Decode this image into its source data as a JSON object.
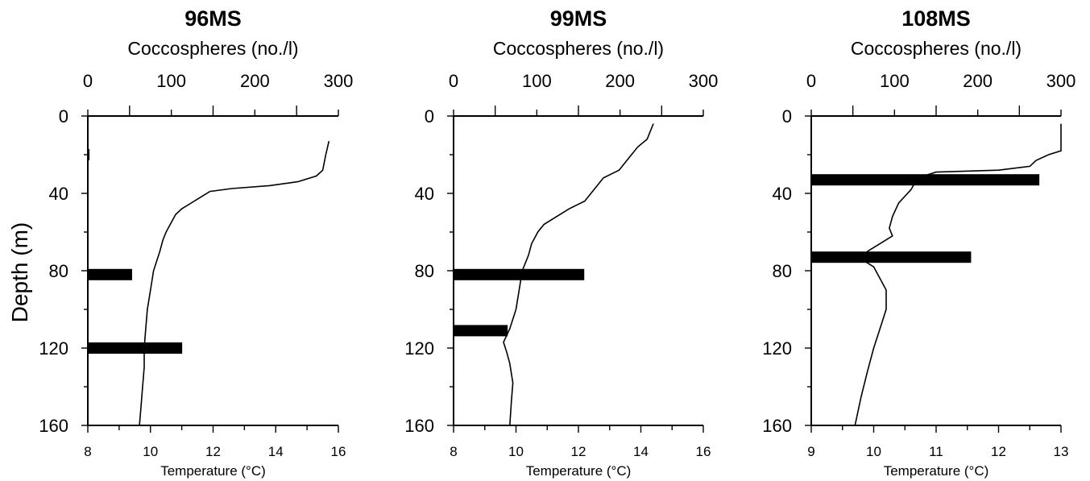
{
  "ylabel": "Depth (m)",
  "chart_data": [
    {
      "type": "bar",
      "title": "96MS",
      "top_axis_label": "Coccospheres (no./l)",
      "bottom_axis_label": "Temperature (°C)",
      "ylim": [
        0,
        160
      ],
      "yticks": [
        0,
        40,
        80,
        120,
        160
      ],
      "xlim_top": [
        0,
        300
      ],
      "xticks_top": [
        0,
        100,
        200,
        300
      ],
      "xlim_bottom": [
        8,
        16
      ],
      "xticks_bottom": [
        8,
        10,
        12,
        14,
        16
      ],
      "bars": [
        {
          "depth": 20,
          "coccospheres": 2
        },
        {
          "depth": 82,
          "coccospheres": 53
        },
        {
          "depth": 120,
          "coccospheres": 113
        }
      ],
      "temperature": [
        [
          15.7,
          13
        ],
        [
          15.6,
          20
        ],
        [
          15.5,
          28
        ],
        [
          15.3,
          31
        ],
        [
          14.7,
          34
        ],
        [
          13.8,
          36
        ],
        [
          12.6,
          37.5
        ],
        [
          11.9,
          39
        ],
        [
          11.6,
          42
        ],
        [
          11.3,
          45
        ],
        [
          11.0,
          48
        ],
        [
          10.8,
          51
        ],
        [
          10.7,
          54
        ],
        [
          10.6,
          57
        ],
        [
          10.5,
          60
        ],
        [
          10.4,
          64
        ],
        [
          10.3,
          70
        ],
        [
          10.1,
          80
        ],
        [
          10.0,
          90
        ],
        [
          9.9,
          100
        ],
        [
          9.85,
          110
        ],
        [
          9.8,
          120
        ],
        [
          9.8,
          130
        ],
        [
          9.75,
          140
        ],
        [
          9.7,
          150
        ],
        [
          9.65,
          160
        ]
      ]
    },
    {
      "type": "bar",
      "title": "99MS",
      "top_axis_label": "Coccospheres (no./l)",
      "bottom_axis_label": "Temperature (°C)",
      "ylim": [
        0,
        160
      ],
      "yticks": [
        0,
        40,
        80,
        120,
        160
      ],
      "xlim_top": [
        0,
        300
      ],
      "xticks_top": [
        0,
        100,
        200,
        300
      ],
      "xlim_bottom": [
        8,
        16
      ],
      "xticks_bottom": [
        8,
        10,
        12,
        14,
        16
      ],
      "bars": [
        {
          "depth": 82,
          "coccospheres": 157
        },
        {
          "depth": 111,
          "coccospheres": 65
        }
      ],
      "temperature": [
        [
          14.4,
          4
        ],
        [
          14.3,
          8
        ],
        [
          14.2,
          12
        ],
        [
          13.9,
          16
        ],
        [
          13.6,
          22
        ],
        [
          13.3,
          28
        ],
        [
          12.8,
          32
        ],
        [
          12.5,
          38
        ],
        [
          12.2,
          44
        ],
        [
          11.7,
          48
        ],
        [
          11.3,
          52
        ],
        [
          10.9,
          56
        ],
        [
          10.7,
          60
        ],
        [
          10.5,
          66
        ],
        [
          10.4,
          72
        ],
        [
          10.2,
          80
        ],
        [
          10.1,
          90
        ],
        [
          10.0,
          100
        ],
        [
          9.8,
          110
        ],
        [
          9.6,
          117
        ],
        [
          9.7,
          122
        ],
        [
          9.8,
          128
        ],
        [
          9.9,
          138
        ],
        [
          9.85,
          148
        ],
        [
          9.8,
          160
        ]
      ]
    },
    {
      "type": "bar",
      "title": "108MS",
      "top_axis_label": "Coccospheres (no./l)",
      "bottom_axis_label": "Temperature (°C)",
      "ylim": [
        0,
        160
      ],
      "yticks": [
        0,
        40,
        80,
        120,
        160
      ],
      "xlim_top": [
        0,
        300
      ],
      "xticks_top": [
        0,
        100,
        200,
        300
      ],
      "xlim_bottom": [
        9,
        13
      ],
      "xticks_bottom": [
        9,
        10,
        11,
        12,
        13
      ],
      "bars": [
        {
          "depth": 33,
          "coccospheres": 274
        },
        {
          "depth": 73,
          "coccospheres": 192
        }
      ],
      "temperature": [
        [
          13.0,
          4
        ],
        [
          13.0,
          18
        ],
        [
          12.8,
          20
        ],
        [
          12.6,
          23
        ],
        [
          12.5,
          26
        ],
        [
          12.0,
          28
        ],
        [
          11.0,
          29
        ],
        [
          10.7,
          32
        ],
        [
          10.6,
          38
        ],
        [
          10.4,
          45
        ],
        [
          10.3,
          52
        ],
        [
          10.25,
          58
        ],
        [
          10.3,
          62
        ],
        [
          10.1,
          66
        ],
        [
          9.9,
          70
        ],
        [
          9.8,
          74
        ],
        [
          10.0,
          78
        ],
        [
          10.1,
          84
        ],
        [
          10.2,
          90
        ],
        [
          10.2,
          100
        ],
        [
          10.1,
          110
        ],
        [
          10.0,
          120
        ],
        [
          9.9,
          132
        ],
        [
          9.8,
          145
        ],
        [
          9.7,
          160
        ]
      ]
    }
  ]
}
